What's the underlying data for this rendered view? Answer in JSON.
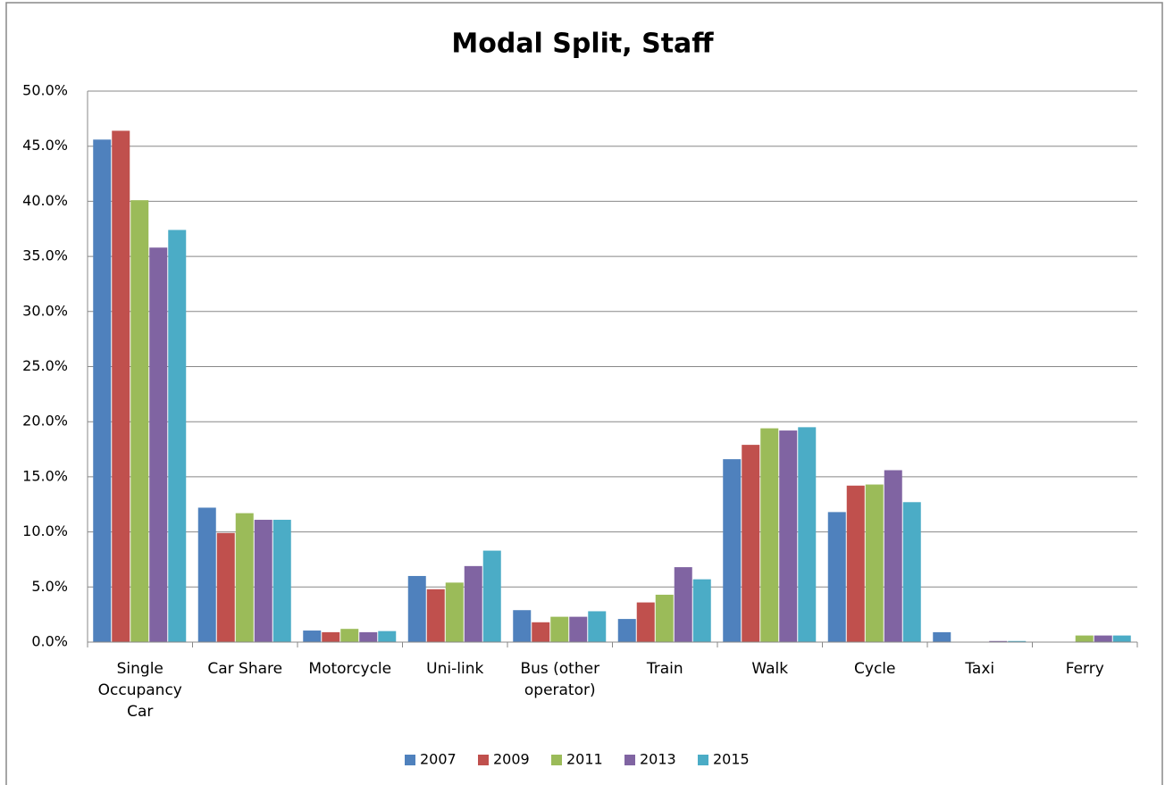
{
  "chart_data": {
    "type": "bar",
    "title": "Modal Split, Staff",
    "categories": [
      "Single Occupancy Car",
      "Car Share",
      "Motorcycle",
      "Uni-link",
      "Bus (other operator)",
      "Train",
      "Walk",
      "Cycle",
      "Taxi",
      "Ferry"
    ],
    "series": [
      {
        "name": "2007",
        "color": "#4f81bd",
        "values": [
          45.6,
          12.2,
          1.05,
          6.0,
          2.9,
          2.1,
          16.6,
          11.8,
          0.9,
          0
        ]
      },
      {
        "name": "2009",
        "color": "#c0504d",
        "values": [
          46.4,
          9.9,
          0.9,
          4.8,
          1.8,
          3.6,
          17.9,
          14.2,
          0,
          0
        ]
      },
      {
        "name": "2011",
        "color": "#9bbb59",
        "values": [
          40.1,
          11.7,
          1.2,
          5.4,
          2.3,
          4.3,
          19.4,
          14.3,
          0,
          0.6
        ]
      },
      {
        "name": "2013",
        "color": "#8064a2",
        "values": [
          35.8,
          11.1,
          0.9,
          6.9,
          2.3,
          6.8,
          19.2,
          15.6,
          0.1,
          0.6
        ]
      },
      {
        "name": "2015",
        "color": "#4bacc6",
        "values": [
          37.4,
          11.1,
          1.0,
          8.3,
          2.8,
          5.7,
          19.5,
          12.7,
          0.1,
          0.6
        ]
      }
    ],
    "ylim": [
      0,
      50
    ],
    "yticks": [
      {
        "value": 0,
        "label": "0.0%"
      },
      {
        "value": 5,
        "label": "5.0%"
      },
      {
        "value": 10,
        "label": "10.0%"
      },
      {
        "value": 15,
        "label": "15.0%"
      },
      {
        "value": 20,
        "label": "20.0%"
      },
      {
        "value": 25,
        "label": "25.0%"
      },
      {
        "value": 30,
        "label": "30.0%"
      },
      {
        "value": 35,
        "label": "35.0%"
      },
      {
        "value": 40,
        "label": "40.0%"
      },
      {
        "value": 45,
        "label": "45.0%"
      },
      {
        "value": 50,
        "label": "50.0%"
      }
    ],
    "grid": true,
    "legend": "bottom"
  }
}
